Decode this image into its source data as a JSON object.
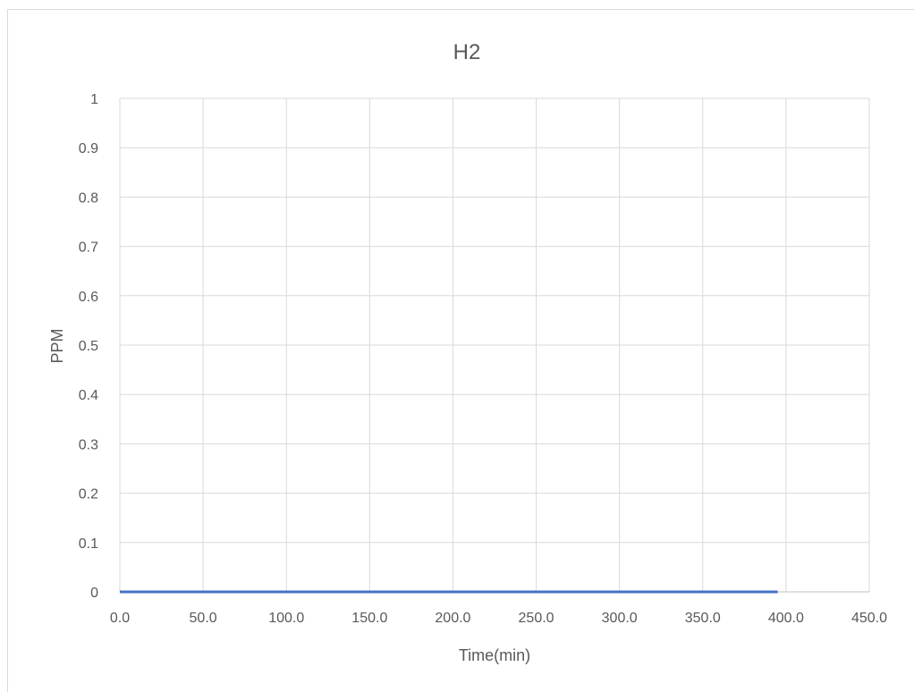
{
  "chart_data": {
    "type": "line",
    "title": "H2",
    "xlabel": "Time(min)",
    "ylabel": "PPM",
    "xlim": [
      0,
      450
    ],
    "ylim": [
      0,
      1
    ],
    "x_ticks": [
      "0.0",
      "50.0",
      "100.0",
      "150.0",
      "200.0",
      "250.0",
      "300.0",
      "350.0",
      "400.0",
      "450.0"
    ],
    "y_ticks": [
      "0",
      "0.1",
      "0.2",
      "0.3",
      "0.4",
      "0.5",
      "0.6",
      "0.7",
      "0.8",
      "0.9",
      "1"
    ],
    "grid": true,
    "legend": "none",
    "series": [
      {
        "color": "#4472c4",
        "x": [
          0,
          50,
          100,
          150,
          200,
          250,
          300,
          350,
          395
        ],
        "y": [
          0,
          0,
          0,
          0,
          0,
          0,
          0,
          0,
          0
        ]
      }
    ]
  }
}
